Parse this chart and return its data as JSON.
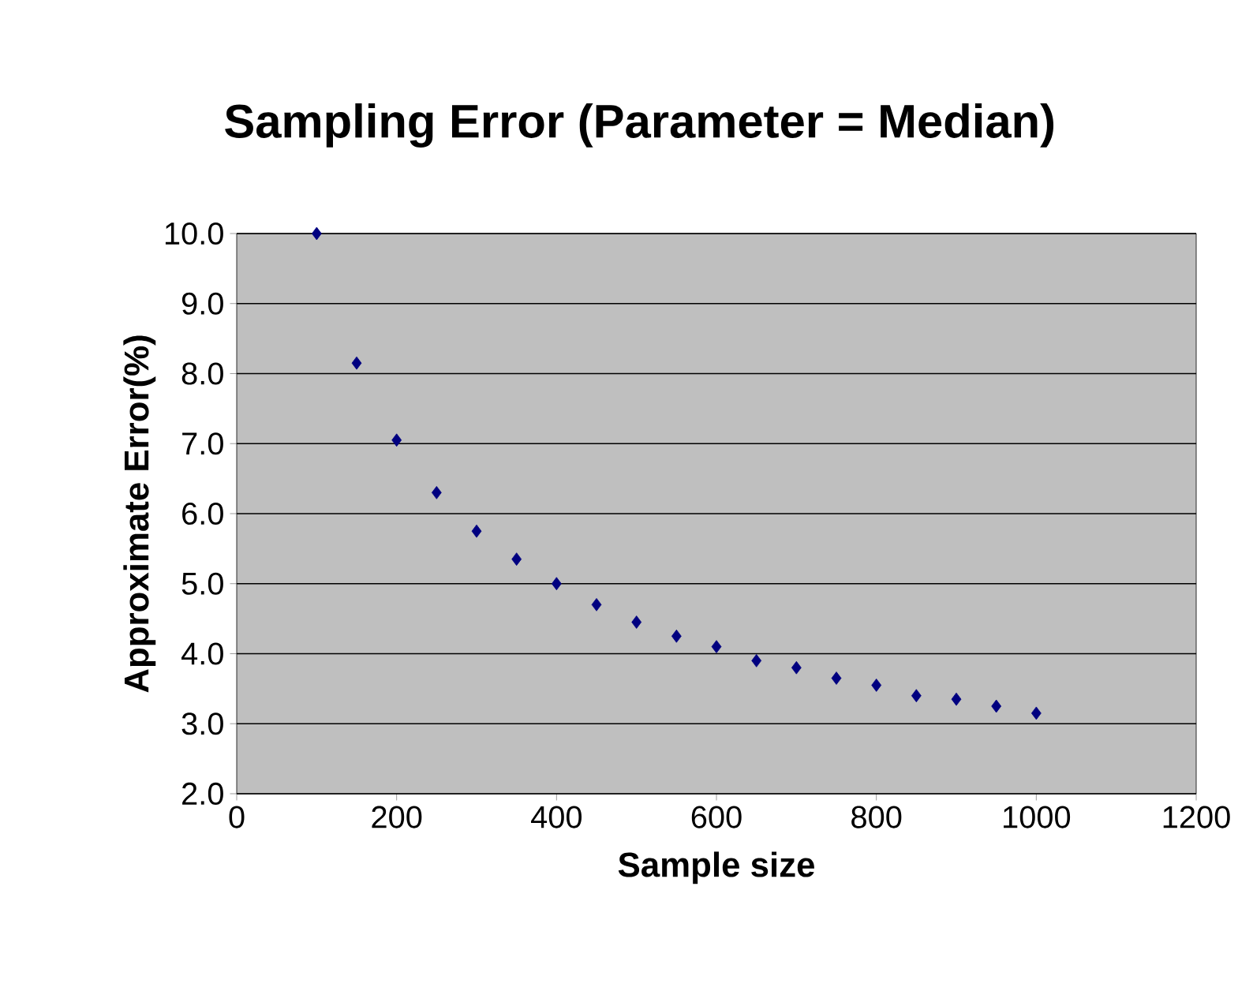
{
  "chart_data": {
    "type": "scatter",
    "title": "Sampling Error (Parameter = Median)",
    "xlabel": "Sample size",
    "ylabel": "Approximate Error(%)",
    "x": [
      100,
      150,
      200,
      250,
      300,
      350,
      400,
      450,
      500,
      550,
      600,
      650,
      700,
      750,
      800,
      850,
      900,
      950,
      1000
    ],
    "series": [
      {
        "color": "#000080",
        "values": [
          10.0,
          8.15,
          7.05,
          6.3,
          5.75,
          5.35,
          5.0,
          4.7,
          4.45,
          4.25,
          4.1,
          3.9,
          3.8,
          3.65,
          3.55,
          3.4,
          3.35,
          3.25,
          3.15
        ]
      }
    ],
    "xlim": [
      0,
      1200
    ],
    "xticks": [
      0,
      200,
      400,
      600,
      800,
      1000,
      1200
    ],
    "ylim": [
      2,
      10
    ],
    "yticks": [
      {
        "value": 2,
        "label": "2.0"
      },
      {
        "value": 3,
        "label": "3.0"
      },
      {
        "value": 4,
        "label": "4.0"
      },
      {
        "value": 5,
        "label": "5.0"
      },
      {
        "value": 6,
        "label": "6.0"
      },
      {
        "value": 7,
        "label": "7.0"
      },
      {
        "value": 8,
        "label": "8.0"
      },
      {
        "value": 9,
        "label": "9.0"
      },
      {
        "value": 10,
        "label": "10.0"
      }
    ],
    "grid": "y",
    "marker": "diamond"
  }
}
